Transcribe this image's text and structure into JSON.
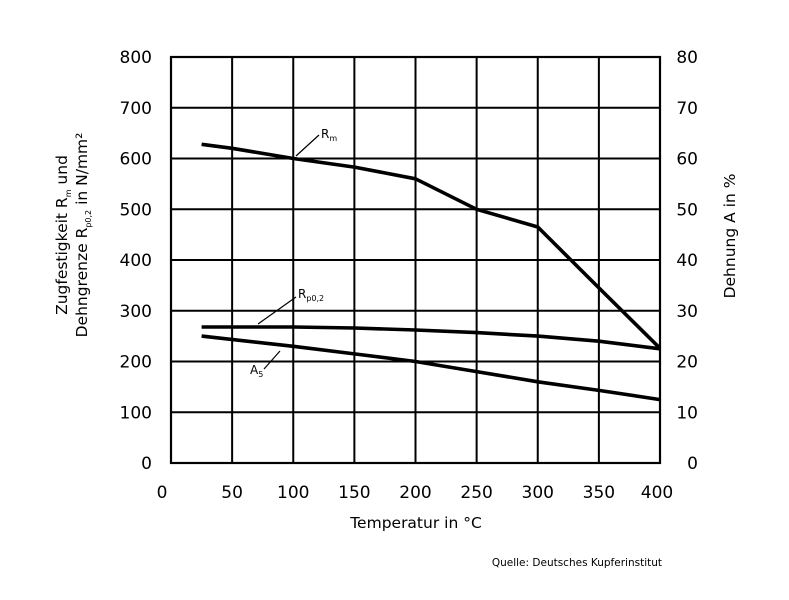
{
  "chart_data": {
    "type": "line",
    "xlabel": "Temperatur in °C",
    "ylabel_left": {
      "line1": {
        "text": "Zugfestigkeit R",
        "sub": "m",
        "after": " und"
      },
      "line2": {
        "text": "Dehngrenze R",
        "sub": "p0,2",
        "after": " in N/mm²"
      }
    },
    "ylabel_right": "Dehnung A in %",
    "xlim": [
      0,
      400
    ],
    "ylim_left": [
      0,
      800
    ],
    "ylim_right": [
      0,
      80
    ],
    "x_ticks": [
      0,
      50,
      100,
      150,
      200,
      250,
      300,
      350,
      400
    ],
    "y_left_ticks": [
      0,
      100,
      200,
      300,
      400,
      500,
      600,
      700,
      800
    ],
    "y_right_ticks": [
      0,
      10,
      20,
      30,
      40,
      50,
      60,
      70,
      80
    ],
    "grid": true,
    "series": [
      {
        "name": "R",
        "name_sub": "m",
        "axis": "left",
        "x": [
          25,
          50,
          100,
          150,
          200,
          250,
          300,
          350,
          400
        ],
        "y": [
          628,
          620,
          600,
          583,
          560,
          500,
          465,
          345,
          226
        ]
      },
      {
        "name": "R",
        "name_sub": "p0,2",
        "axis": "left",
        "x": [
          25,
          100,
          150,
          200,
          250,
          300,
          350,
          400
        ],
        "y": [
          268,
          268,
          266,
          262,
          257,
          250,
          240,
          225
        ]
      },
      {
        "name": "A",
        "name_sub": "5",
        "axis": "right",
        "x": [
          25,
          100,
          150,
          200,
          250,
          300,
          350,
          400
        ],
        "y": [
          25,
          23,
          21.5,
          20,
          18,
          16,
          14.3,
          12.5
        ]
      }
    ],
    "source": "Quelle: Deutsches Kupferinstitut"
  }
}
